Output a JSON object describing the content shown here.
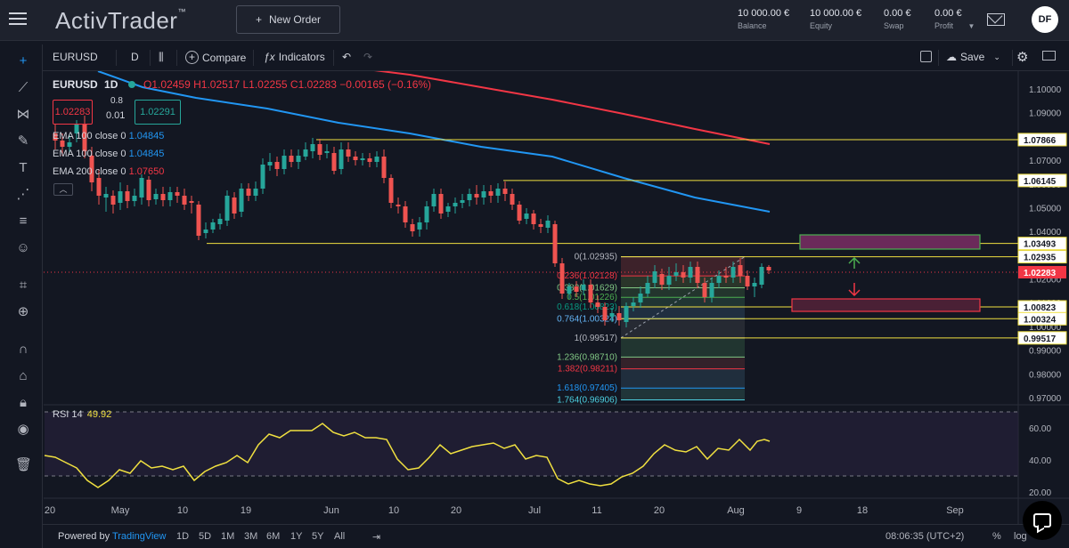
{
  "topbar": {
    "logo": "ActivTrader",
    "logo_mark": "™",
    "new_order_label": "New Order",
    "stats": [
      {
        "value": "10 000.00 €",
        "label": "Balance"
      },
      {
        "value": "10 000.00 €",
        "label": "Equity"
      },
      {
        "value": "0.00 €",
        "label": "Swap"
      },
      {
        "value": "0.00 €",
        "label": "Profit"
      }
    ],
    "avatar_initials": "DF"
  },
  "toolbar": {
    "symbol": "EURUSD",
    "interval": "D",
    "compare": "Compare",
    "indicators": "Indicators",
    "save": "Save"
  },
  "legend": {
    "symbol": "EURUSD",
    "interval": "1D",
    "ohlc": {
      "o": "O1.02459",
      "h": "H1.02517",
      "l": "L1.02255",
      "c": "C1.02283",
      "chg": "−0.00165 (−0.16%)"
    },
    "bid": "1.02283",
    "spread_top": "0.8",
    "spread": "0.01",
    "ask": "1.02291",
    "emas": [
      {
        "label": "EMA 100 close 0",
        "value": "1.04845",
        "color": "#2196f3"
      },
      {
        "label": "EMA 100 close 0",
        "value": "1.04845",
        "color": "#2196f3"
      },
      {
        "label": "EMA 200 close 0",
        "value": "1.07650",
        "color": "#f23645"
      }
    ]
  },
  "rsi": {
    "label": "RSI",
    "length": "14",
    "value": "49.92"
  },
  "chart_data": {
    "type": "candlestick",
    "symbol": "EURUSD",
    "interval": "1D",
    "price_axis": [
      "1.10000",
      "1.09000",
      "1.08000",
      "1.07000",
      "1.06000",
      "1.05000",
      "1.04000",
      "1.03000",
      "1.02000",
      "1.01000",
      "1.00000",
      "0.99000",
      "0.98000",
      "0.97000"
    ],
    "rsi_axis": [
      "60.00",
      "40.00",
      "20.00"
    ],
    "time_axis": [
      "20",
      "May",
      "10",
      "19",
      "Jun",
      "10",
      "20",
      "Jul",
      "11",
      "20",
      "Aug",
      "9",
      "18",
      "Sep"
    ],
    "horizontal_lines": [
      {
        "price": 1.07866,
        "label": "1.07866",
        "color": "#f0e040"
      },
      {
        "price": 1.06145,
        "label": "1.06145",
        "color": "#f0e040"
      },
      {
        "price": 1.03493,
        "label": "1.03493",
        "color": "#f0e040"
      },
      {
        "price": 1.02935,
        "label": "1.02935",
        "color": "#f0e040"
      },
      {
        "price": 1.00823,
        "label": "1.00823",
        "color": "#f0e040"
      },
      {
        "price": 1.00324,
        "label": "1.00324",
        "color": "#f0e040"
      },
      {
        "price": 0.99517,
        "label": "0.99517",
        "color": "#f0e040"
      }
    ],
    "last_price": {
      "price": 1.02283,
      "label": "1.02283",
      "color": "#f23645"
    },
    "fibonacci": [
      {
        "level": "0",
        "price": "1.02935",
        "color": "#b2b5be"
      },
      {
        "level": "0.236",
        "price": "1.02128",
        "color": "#f23645"
      },
      {
        "level": "0.382",
        "price": "1.01629",
        "color": "#81c784"
      },
      {
        "level": "0.5",
        "price": "1.01226",
        "color": "#4caf50"
      },
      {
        "level": "0.618",
        "price": "1.00823",
        "color": "#089981"
      },
      {
        "level": "0.764",
        "price": "1.00324",
        "color": "#64b5f6"
      },
      {
        "level": "1",
        "price": "0.99517",
        "color": "#b2b5be"
      },
      {
        "level": "1.236",
        "price": "0.98710",
        "color": "#81c784"
      },
      {
        "level": "1.382",
        "price": "0.98211",
        "color": "#f23645"
      },
      {
        "level": "1.618",
        "price": "0.97405",
        "color": "#2196f3"
      },
      {
        "level": "1.764",
        "price": "0.96906",
        "color": "#4dd0e1"
      }
    ],
    "zones": [
      {
        "type": "resistance",
        "color": "#4caf50"
      },
      {
        "type": "support",
        "color": "#f23645"
      }
    ]
  },
  "bottombar": {
    "powered": "Powered by",
    "brand": "TradingView",
    "ranges": [
      "1D",
      "5D",
      "1M",
      "3M",
      "6M",
      "1Y",
      "5Y",
      "All"
    ],
    "clock": "08:06:35 (UTC+2)",
    "pct": "%",
    "log": "log"
  }
}
